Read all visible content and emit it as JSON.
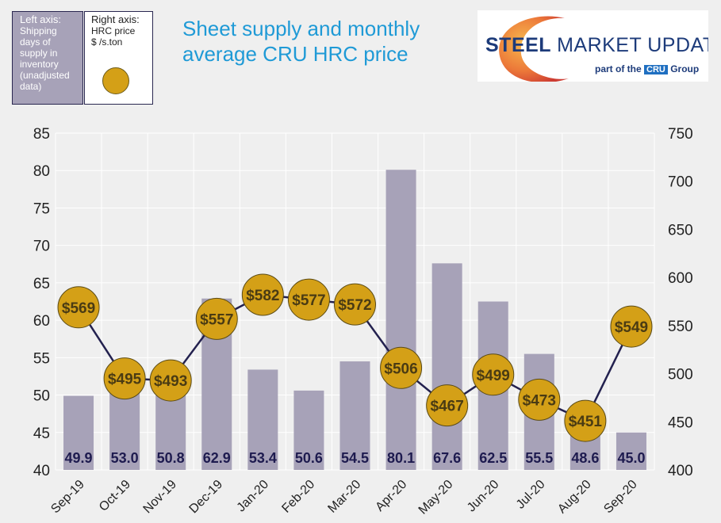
{
  "legend": {
    "left_title": "Left axis:",
    "left_lines": [
      "Shipping",
      "days of",
      "supply in",
      "inventory",
      "(unadjusted",
      "data)"
    ],
    "right_title": "Right axis:",
    "right_lines": [
      "HRC  price",
      "$ /s.ton"
    ]
  },
  "title_lines": [
    "Sheet supply and monthly",
    "average CRU HRC price"
  ],
  "logo": {
    "steel": "STEEL",
    "market_update": "MARKET UPDATE",
    "part_of_the": "part of the",
    "cru": "CRU",
    "group": "Group"
  },
  "colors": {
    "bar": "#a7a2b8",
    "line": "#23214f",
    "bubble": "#d4a017",
    "bubble_text": "#4a3b13",
    "bar_label": "#1e1b4f",
    "title": "#1f9ad6"
  },
  "chart_data": {
    "type": "bar+line",
    "categories": [
      "Sep-19",
      "Oct-19",
      "Nov-19",
      "Dec-19",
      "Jan-20",
      "Feb-20",
      "Mar-20",
      "Apr-20",
      "May-20",
      "Jun-20",
      "Jul-20",
      "Aug-20",
      "Sep-20"
    ],
    "series": [
      {
        "name": "Shipping days of supply in inventory (unadjusted data)",
        "axis": "left",
        "type": "bar",
        "values": [
          49.9,
          53.0,
          50.8,
          62.9,
          53.4,
          50.6,
          54.5,
          80.1,
          67.6,
          62.5,
          55.5,
          48.6,
          45.0
        ],
        "labels": [
          "49.9",
          "53.0",
          "50.8",
          "62.9",
          "53.4",
          "50.6",
          "54.5",
          "80.1",
          "67.6",
          "62.5",
          "55.5",
          "48.6",
          "45.0"
        ]
      },
      {
        "name": "HRC price $/s.ton",
        "axis": "right",
        "type": "line",
        "values": [
          569,
          495,
          493,
          557,
          582,
          577,
          572,
          506,
          467,
          499,
          473,
          451,
          549
        ],
        "labels": [
          "$569",
          "$495",
          "$493",
          "$557",
          "$582",
          "$577",
          "$572",
          "$506",
          "$467",
          "$499",
          "$473",
          "$451",
          "$549"
        ]
      }
    ],
    "ylim_left": [
      40,
      85
    ],
    "yticks_left": [
      "40",
      "45",
      "50",
      "55",
      "60",
      "65",
      "70",
      "75",
      "80",
      "85"
    ],
    "ylim_right": [
      400,
      750
    ],
    "yticks_right": [
      "400",
      "450",
      "500",
      "550",
      "600",
      "650",
      "700",
      "750"
    ],
    "grid": true
  }
}
